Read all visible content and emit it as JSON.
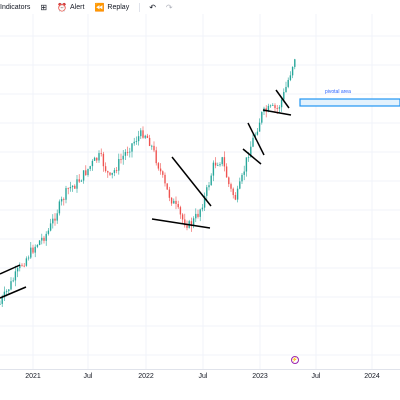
{
  "toolbar": {
    "indicators_label": "Indicators",
    "alert_label": "Alert",
    "replay_label": "Replay",
    "icons": [
      "indicators-icon",
      "templates-icon",
      "alert-icon",
      "replay-icon",
      "undo-icon",
      "redo-icon"
    ]
  },
  "annotation": {
    "pivotal_label": "pivotal area"
  },
  "time_axis": {
    "ticks": [
      "2021",
      "Jul",
      "2022",
      "Jul",
      "2023",
      "Jul",
      "2024"
    ]
  },
  "badge": {
    "symbol": "⚡"
  },
  "colors": {
    "up": "#26a69a",
    "down": "#ef5350",
    "trendline": "#000000",
    "pivotal": "#2196f3",
    "grid": "#f0f3fa"
  }
}
